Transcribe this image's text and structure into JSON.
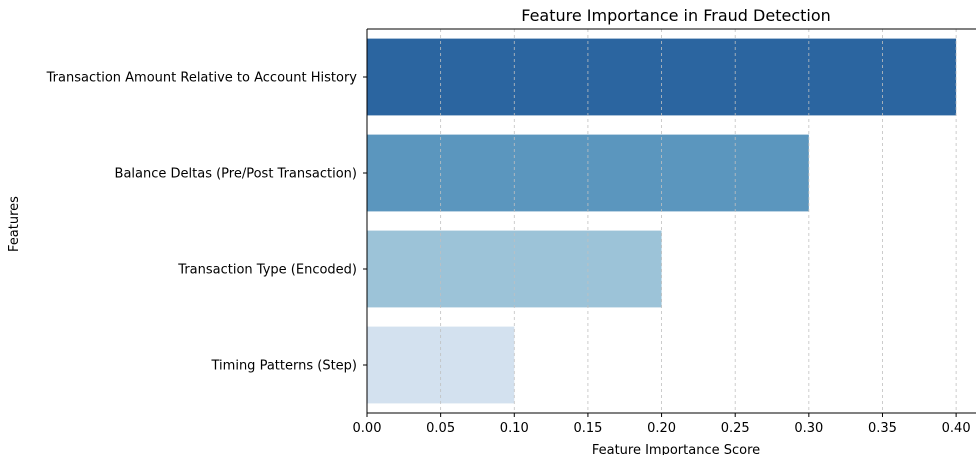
{
  "chart_data": {
    "type": "bar",
    "orientation": "horizontal",
    "title": "Feature Importance in Fraud Detection",
    "xlabel": "Feature Importance Score",
    "ylabel": "Features",
    "categories": [
      "Transaction Amount Relative to Account History",
      "Balance Deltas (Pre/Post Transaction)",
      "Transaction Type (Encoded)",
      "Timing Patterns (Step)"
    ],
    "values": [
      0.4,
      0.3,
      0.2,
      0.1
    ],
    "colors": [
      "#2b65a0",
      "#5b96be",
      "#9cc3d8",
      "#d3e1ef"
    ],
    "xlim": [
      0,
      0.4135
    ],
    "xticks": [
      0.0,
      0.05,
      0.1,
      0.15,
      0.2,
      0.25,
      0.3,
      0.35,
      0.4
    ],
    "xtick_labels": [
      "0.00",
      "0.05",
      "0.10",
      "0.15",
      "0.20",
      "0.25",
      "0.30",
      "0.35",
      "0.40"
    ],
    "grid": {
      "x": true,
      "y": false,
      "style": "dashed",
      "color": "#c0c0c0"
    },
    "legend": "none"
  }
}
